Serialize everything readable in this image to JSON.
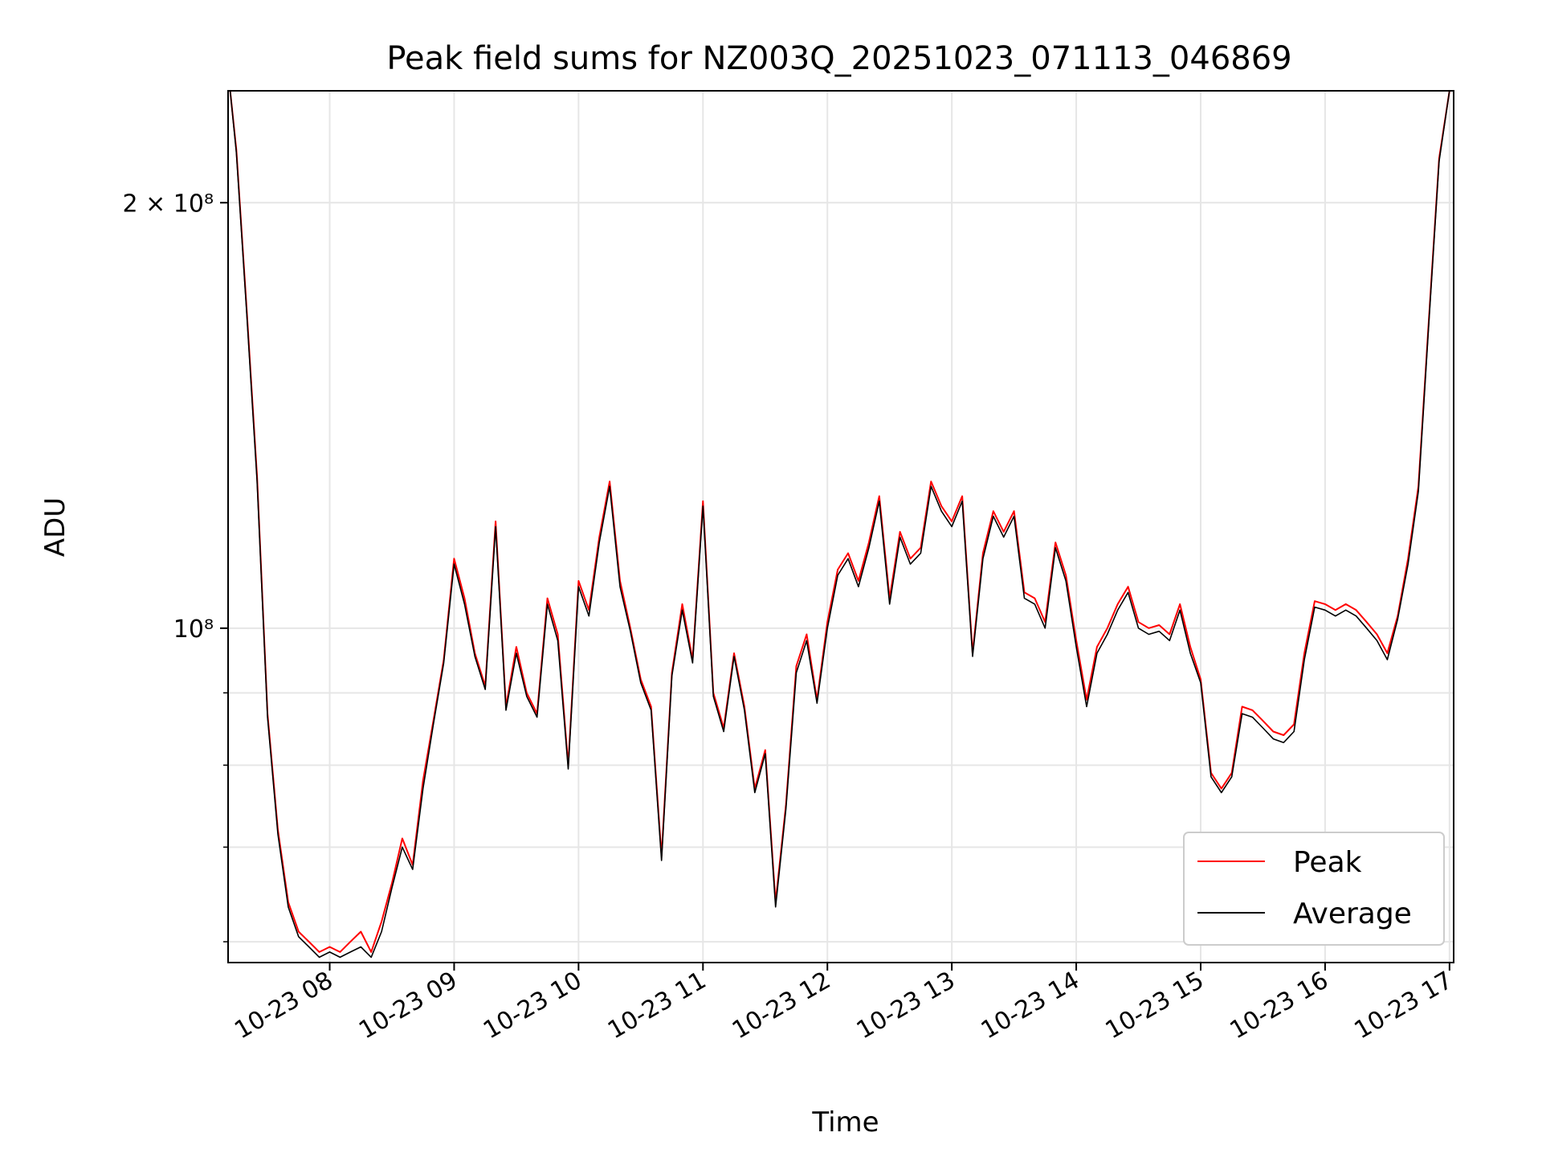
{
  "chart_data": {
    "type": "line",
    "title": "Peak field sums for NZ003Q_20251023_071113_046869",
    "xlabel": "Time",
    "ylabel": "ADU",
    "y_scale": "log",
    "xlim": [
      "10-23 07:11",
      "10-23 17:02"
    ],
    "ylim": [
      58000000,
      240000000
    ],
    "x_ticks": [
      "10-23 08",
      "10-23 09",
      "10-23 10",
      "10-23 11",
      "10-23 12",
      "10-23 13",
      "10-23 14",
      "10-23 15",
      "10-23 16",
      "10-23 17"
    ],
    "y_ticks": [
      {
        "value": 200000000,
        "label": "2 × 10⁸"
      },
      {
        "value": 100000000,
        "label": "10⁸"
      }
    ],
    "grid": true,
    "legend_position": "lower-right",
    "x": [
      "07:12",
      "07:15",
      "07:20",
      "07:25",
      "07:30",
      "07:35",
      "07:40",
      "07:45",
      "07:50",
      "07:55",
      "08:00",
      "08:05",
      "08:10",
      "08:15",
      "08:20",
      "08:25",
      "08:30",
      "08:35",
      "08:40",
      "08:45",
      "08:50",
      "08:55",
      "09:00",
      "09:05",
      "09:10",
      "09:15",
      "09:20",
      "09:25",
      "09:30",
      "09:35",
      "09:40",
      "09:45",
      "09:50",
      "09:55",
      "10:00",
      "10:05",
      "10:10",
      "10:15",
      "10:20",
      "10:25",
      "10:30",
      "10:35",
      "10:40",
      "10:45",
      "10:50",
      "10:55",
      "11:00",
      "11:05",
      "11:10",
      "11:15",
      "11:20",
      "11:25",
      "11:30",
      "11:35",
      "11:40",
      "11:45",
      "11:50",
      "11:55",
      "12:00",
      "12:05",
      "12:10",
      "12:15",
      "12:20",
      "12:25",
      "12:30",
      "12:35",
      "12:40",
      "12:45",
      "12:50",
      "12:55",
      "13:00",
      "13:05",
      "13:10",
      "13:15",
      "13:20",
      "13:25",
      "13:30",
      "13:35",
      "13:40",
      "13:45",
      "13:50",
      "13:55",
      "14:00",
      "14:05",
      "14:10",
      "14:15",
      "14:20",
      "14:25",
      "14:30",
      "14:35",
      "14:40",
      "14:45",
      "14:50",
      "14:55",
      "15:00",
      "15:05",
      "15:10",
      "15:15",
      "15:20",
      "15:25",
      "15:30",
      "15:35",
      "15:40",
      "15:45",
      "15:50",
      "15:55",
      "16:00",
      "16:05",
      "16:10",
      "16:15",
      "16:20",
      "16:25",
      "16:30",
      "16:35",
      "16:40",
      "16:45",
      "16:50",
      "16:55",
      "17:00"
    ],
    "series": [
      {
        "name": "Peak",
        "color": "#ff0000",
        "values": [
          240000000,
          218000000,
          168000000,
          128000000,
          87000000,
          72000000,
          64000000,
          61000000,
          60000000,
          59000000,
          59500000,
          59000000,
          60000000,
          61000000,
          59000000,
          62000000,
          66000000,
          71000000,
          68000000,
          78000000,
          86000000,
          95000000,
          112000000,
          105000000,
          96000000,
          91000000,
          119000000,
          88000000,
          97000000,
          90000000,
          87000000,
          105000000,
          99000000,
          80000000,
          108000000,
          103000000,
          116000000,
          127000000,
          108000000,
          100000000,
          92000000,
          88000000,
          69000000,
          93000000,
          104000000,
          95000000,
          123000000,
          90000000,
          85000000,
          96000000,
          88000000,
          77000000,
          82000000,
          64000000,
          75000000,
          94000000,
          99000000,
          89000000,
          101000000,
          110000000,
          113000000,
          108000000,
          115000000,
          124000000,
          105000000,
          117000000,
          112000000,
          114000000,
          127000000,
          122000000,
          119000000,
          124000000,
          96000000,
          113000000,
          121000000,
          117000000,
          121000000,
          106000000,
          105000000,
          101000000,
          115000000,
          109000000,
          98000000,
          89000000,
          97000000,
          100000000,
          104000000,
          107000000,
          101000000,
          100000000,
          100500000,
          99000000,
          104000000,
          97000000,
          92000000,
          79000000,
          77000000,
          79000000,
          88000000,
          87500000,
          86000000,
          84500000,
          84000000,
          85500000,
          96000000,
          104500000,
          104000000,
          103000000,
          104000000,
          103000000,
          101000000,
          99000000,
          96000000,
          102000000,
          112000000,
          126000000,
          165000000,
          215000000,
          240000000
        ]
      },
      {
        "name": "Average",
        "color": "#000000",
        "values": [
          240000000,
          217000000,
          167000000,
          127000000,
          86500000,
          71500000,
          63500000,
          60500000,
          59500000,
          58500000,
          59000000,
          58500000,
          59000000,
          59500000,
          58500000,
          61000000,
          65500000,
          70000000,
          67500000,
          77000000,
          85500000,
          94500000,
          111000000,
          104000000,
          95500000,
          90500000,
          118000000,
          87500000,
          96000000,
          89500000,
          86500000,
          104000000,
          98000000,
          79500000,
          107000000,
          102000000,
          115000000,
          126000000,
          107000000,
          99500000,
          91500000,
          87500000,
          68500000,
          92500000,
          103000000,
          94500000,
          122000000,
          89500000,
          84500000,
          95500000,
          87500000,
          76500000,
          81500000,
          63500000,
          74500000,
          93000000,
          98000000,
          88500000,
          100000000,
          109000000,
          112000000,
          107000000,
          114000000,
          123000000,
          104000000,
          116000000,
          111000000,
          113000000,
          126000000,
          121000000,
          118000000,
          123000000,
          95500000,
          112000000,
          120000000,
          116000000,
          120000000,
          105000000,
          104000000,
          100000000,
          114000000,
          108000000,
          97000000,
          88000000,
          96000000,
          99000000,
          103000000,
          106000000,
          100000000,
          99000000,
          99500000,
          98000000,
          103000000,
          96000000,
          91500000,
          78500000,
          76500000,
          78500000,
          87000000,
          86500000,
          85000000,
          83500000,
          83000000,
          84500000,
          95000000,
          103500000,
          103000000,
          102000000,
          103000000,
          102000000,
          100000000,
          98000000,
          95000000,
          101500000,
          111000000,
          125000000,
          164000000,
          214000000,
          240000000
        ]
      }
    ]
  }
}
